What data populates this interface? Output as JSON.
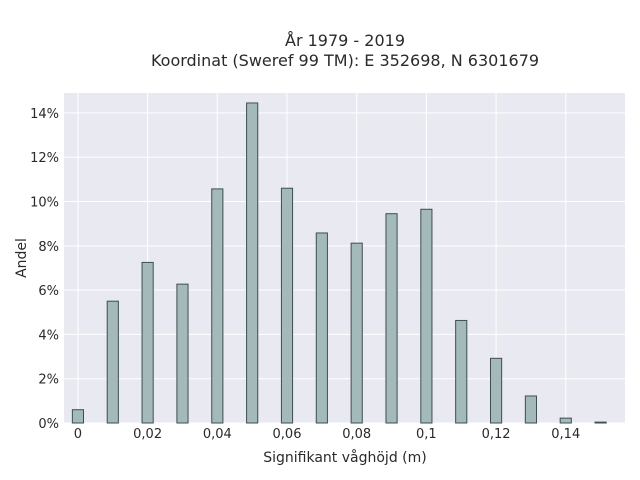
{
  "chart_data": {
    "type": "bar",
    "title_lines": [
      "År 1979 - 2019",
      "Koordinat (Sweref 99 TM): E 352698, N 6301679"
    ],
    "xlabel": "Signifikant våghöjd (m)",
    "ylabel": "Andel",
    "x": [
      0,
      0.01,
      0.02,
      0.03,
      0.04,
      0.05,
      0.06,
      0.07,
      0.08,
      0.09,
      0.1,
      0.11,
      0.12,
      0.13,
      0.14,
      0.15
    ],
    "values": [
      0.6,
      5.5,
      7.25,
      6.27,
      10.57,
      14.45,
      10.6,
      8.58,
      8.12,
      9.45,
      9.65,
      4.63,
      2.92,
      1.22,
      0.22,
      0.04
    ],
    "xlim": [
      -0.004,
      0.157
    ],
    "ylim": [
      0,
      14.9
    ],
    "xticks": [
      0,
      0.02,
      0.04,
      0.06,
      0.08,
      0.1,
      0.12,
      0.14
    ],
    "xtick_labels": [
      "0",
      "0,02",
      "0,04",
      "0,06",
      "0,08",
      "0,1",
      "0,12",
      "0,14"
    ],
    "yticks": [
      0,
      2,
      4,
      6,
      8,
      10,
      12,
      14
    ],
    "ytick_labels": [
      "0%",
      "2%",
      "4%",
      "6%",
      "8%",
      "10%",
      "12%",
      "14%"
    ],
    "grid": true,
    "colors": {
      "bar_fill": "#a3b9ba",
      "bar_edge": "#3e4f4f",
      "plot_background": "#e9e9f1",
      "grid": "#ffffff"
    }
  }
}
